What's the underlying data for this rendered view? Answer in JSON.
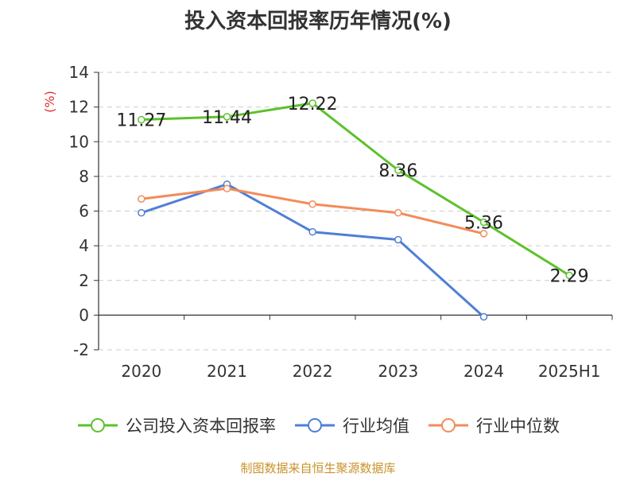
{
  "chart_data": {
    "type": "line",
    "title": "投入资本回报率历年情况(%)",
    "ylabel": "(%)",
    "categories": [
      "2020",
      "2021",
      "2022",
      "2023",
      "2024",
      "2025H1"
    ],
    "ylim": [
      -2,
      14
    ],
    "yticks": [
      -2,
      0,
      2,
      4,
      6,
      8,
      10,
      12,
      14
    ],
    "grid": true,
    "legend_position": "bottom",
    "series": [
      {
        "name": "公司投入资本回报率",
        "color": "#5cc22b",
        "values": [
          11.27,
          11.44,
          12.22,
          8.36,
          5.36,
          2.29
        ],
        "labels": [
          "11.27",
          "11.44",
          "12.22",
          "8.36",
          "5.36",
          "2.29"
        ]
      },
      {
        "name": "行业均值",
        "color": "#4f7fd6",
        "values": [
          5.9,
          7.55,
          4.8,
          4.35,
          -0.1,
          null
        ]
      },
      {
        "name": "行业中位数",
        "color": "#f28c5a",
        "values": [
          6.7,
          7.3,
          6.4,
          5.9,
          4.7,
          null
        ]
      }
    ]
  },
  "footer": {
    "source": "制图数据来自恒生聚源数据库"
  }
}
